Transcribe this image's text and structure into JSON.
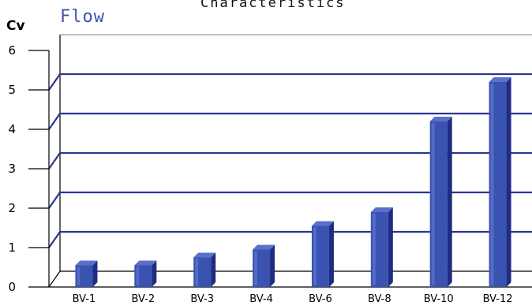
{
  "chart_data": {
    "type": "bar",
    "title": "Characteristics",
    "subtitle": "Flow",
    "xlabel": "",
    "ylabel": "Cv",
    "ylim": [
      0,
      6
    ],
    "yticks": [
      "0",
      "1",
      "2",
      "3",
      "4",
      "5",
      "6"
    ],
    "grid": true,
    "categories": [
      "BV-1",
      "BV-2",
      "BV-3",
      "BV-4",
      "BV-6",
      "BV-8",
      "BV-10",
      "BV-12"
    ],
    "values": [
      0.55,
      0.55,
      0.75,
      0.95,
      1.55,
      1.9,
      4.2,
      5.2
    ],
    "colors": {
      "bar_front": "#3a52b0",
      "bar_side": "#1f2c80",
      "bar_top": "#5a70cc",
      "grid": "#2a3590",
      "subtitle": "#3d52b8"
    }
  }
}
